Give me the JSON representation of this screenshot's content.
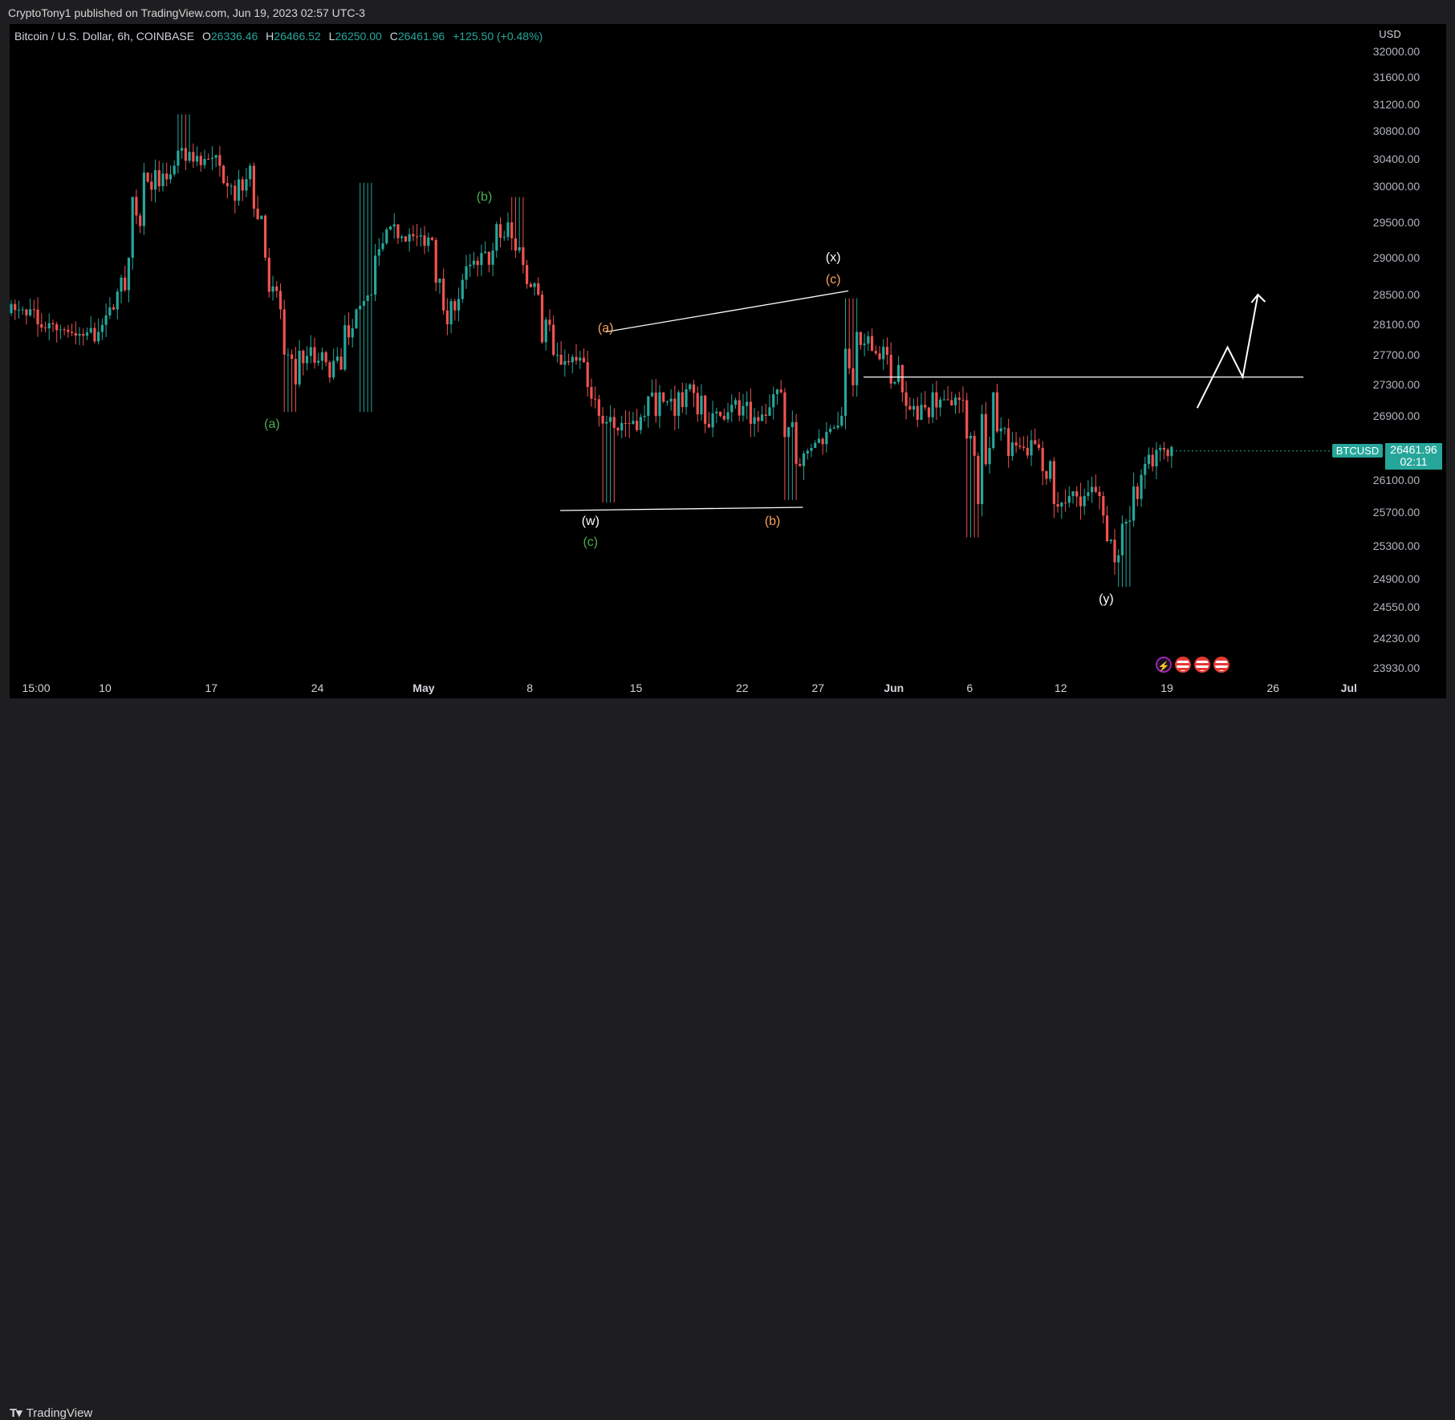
{
  "header": {
    "published_line": "CryptoTony1 published on TradingView.com, Jun 19, 2023 02:57 UTC-3"
  },
  "legend": {
    "symbol": "Bitcoin / U.S. Dollar, 6h, COINBASE",
    "o_label": "O",
    "o": "26336.46",
    "h_label": "H",
    "h": "26466.52",
    "l_label": "L",
    "l": "26250.00",
    "c_label": "C",
    "c": "26461.96",
    "change": "+125.50 (+0.48%)"
  },
  "price_axis": {
    "currency": "USD",
    "ticks": [
      "32000.00",
      "31600.00",
      "31200.00",
      "30800.00",
      "30400.00",
      "30000.00",
      "29500.00",
      "29000.00",
      "28500.00",
      "28100.00",
      "27700.00",
      "27300.00",
      "26900.00",
      "26100.00",
      "25700.00",
      "25300.00",
      "24900.00",
      "24550.00",
      "24230.00",
      "23930.00"
    ],
    "scale": "log"
  },
  "time_axis": {
    "ticks": [
      {
        "label": "15:00",
        "bold": false
      },
      {
        "label": "10",
        "bold": false
      },
      {
        "label": "17",
        "bold": false
      },
      {
        "label": "24",
        "bold": false
      },
      {
        "label": "May",
        "bold": true
      },
      {
        "label": "8",
        "bold": false
      },
      {
        "label": "15",
        "bold": false
      },
      {
        "label": "22",
        "bold": false
      },
      {
        "label": "27",
        "bold": false
      },
      {
        "label": "Jun",
        "bold": true
      },
      {
        "label": "6",
        "bold": false
      },
      {
        "label": "12",
        "bold": false
      },
      {
        "label": "19",
        "bold": false
      },
      {
        "label": "26",
        "bold": false
      },
      {
        "label": "Jul",
        "bold": true
      }
    ]
  },
  "last_price": {
    "ticker": "BTCUSD",
    "price": "26461.96",
    "countdown": "02:11"
  },
  "annotations": {
    "green": [
      {
        "text": "(a)",
        "date": "2023-04-21",
        "price": 26750
      },
      {
        "text": "(b)",
        "date": "2023-05-05",
        "price": 29800
      },
      {
        "text": "(c)",
        "date": "2023-05-12",
        "price": 25300
      }
    ],
    "orange": [
      {
        "text": "(a)",
        "date": "2023-05-13",
        "price": 28000
      },
      {
        "text": "(b)",
        "date": "2023-05-24",
        "price": 25550
      },
      {
        "text": "(c)",
        "date": "2023-05-28",
        "price": 28650
      }
    ],
    "white": [
      {
        "text": "(w)",
        "date": "2023-05-12",
        "price": 25550
      },
      {
        "text": "(x)",
        "date": "2023-05-28",
        "price": 28950
      },
      {
        "text": "(y)",
        "date": "2023-06-15",
        "price": 24600
      }
    ]
  },
  "footer": {
    "brand": "TradingView",
    "logo_glyph": "T▾"
  },
  "colors": {
    "up": "#26a69a",
    "down": "#ef5350",
    "wick_up": "#26a69a",
    "wick_down": "#ef5350",
    "drawing": "#ffffff",
    "green_label": "#4caf50",
    "orange_label": "#f7a35c"
  },
  "chart_data": {
    "type": "candlestick",
    "title": "Bitcoin / U.S. Dollar, 6h, COINBASE",
    "timeframe": "6h",
    "x_range": [
      "2023-04-03",
      "2023-07-01"
    ],
    "ylim": [
      23800,
      32150
    ],
    "series_close": [
      {
        "date": "2023-04-03",
        "close": 28300
      },
      {
        "date": "2023-04-04",
        "close": 28100
      },
      {
        "date": "2023-04-05",
        "close": 28100
      },
      {
        "date": "2023-04-06",
        "close": 28000
      },
      {
        "date": "2023-04-07",
        "close": 27950
      },
      {
        "date": "2023-04-08",
        "close": 28000
      },
      {
        "date": "2023-04-09",
        "close": 28300
      },
      {
        "date": "2023-04-10",
        "close": 29000
      },
      {
        "date": "2023-04-11",
        "close": 30200
      },
      {
        "date": "2023-04-12",
        "close": 30000
      },
      {
        "date": "2023-04-13",
        "close": 30300
      },
      {
        "date": "2023-04-14",
        "close": 30500
      },
      {
        "date": "2023-04-15",
        "close": 30400
      },
      {
        "date": "2023-04-16",
        "close": 30300
      },
      {
        "date": "2023-04-17",
        "close": 29800
      },
      {
        "date": "2023-04-18",
        "close": 30300
      },
      {
        "date": "2023-04-19",
        "close": 29000
      },
      {
        "date": "2023-04-20",
        "close": 28300
      },
      {
        "date": "2023-04-21",
        "close": 27300
      },
      {
        "date": "2023-04-22",
        "close": 27800
      },
      {
        "date": "2023-04-23",
        "close": 27600
      },
      {
        "date": "2023-04-24",
        "close": 27500
      },
      {
        "date": "2023-04-25",
        "close": 28300
      },
      {
        "date": "2023-04-26",
        "close": 28500
      },
      {
        "date": "2023-04-27",
        "close": 29400
      },
      {
        "date": "2023-04-28",
        "close": 29300
      },
      {
        "date": "2023-04-29",
        "close": 29300
      },
      {
        "date": "2023-04-30",
        "close": 29250
      },
      {
        "date": "2023-05-01",
        "close": 28100
      },
      {
        "date": "2023-05-02",
        "close": 28700
      },
      {
        "date": "2023-05-03",
        "close": 28900
      },
      {
        "date": "2023-05-04",
        "close": 29100
      },
      {
        "date": "2023-05-05",
        "close": 29500
      },
      {
        "date": "2023-05-06",
        "close": 28900
      },
      {
        "date": "2023-05-07",
        "close": 28500
      },
      {
        "date": "2023-05-08",
        "close": 27700
      },
      {
        "date": "2023-05-09",
        "close": 27600
      },
      {
        "date": "2023-05-10",
        "close": 27600
      },
      {
        "date": "2023-05-11",
        "close": 26900
      },
      {
        "date": "2023-05-12",
        "close": 26750
      },
      {
        "date": "2023-05-13",
        "close": 26800
      },
      {
        "date": "2023-05-14",
        "close": 26900
      },
      {
        "date": "2023-05-15",
        "close": 27200
      },
      {
        "date": "2023-05-16",
        "close": 26900
      },
      {
        "date": "2023-05-17",
        "close": 27300
      },
      {
        "date": "2023-05-18",
        "close": 26800
      },
      {
        "date": "2023-05-19",
        "close": 26900
      },
      {
        "date": "2023-05-20",
        "close": 27100
      },
      {
        "date": "2023-05-21",
        "close": 26800
      },
      {
        "date": "2023-05-22",
        "close": 26900
      },
      {
        "date": "2023-05-23",
        "close": 27200
      },
      {
        "date": "2023-05-24",
        "close": 26300
      },
      {
        "date": "2023-05-25",
        "close": 26500
      },
      {
        "date": "2023-05-26",
        "close": 26700
      },
      {
        "date": "2023-05-27",
        "close": 26900
      },
      {
        "date": "2023-05-28",
        "close": 28000
      },
      {
        "date": "2023-05-29",
        "close": 27750
      },
      {
        "date": "2023-05-30",
        "close": 27700
      },
      {
        "date": "2023-05-31",
        "close": 27200
      },
      {
        "date": "2023-06-01",
        "close": 26850
      },
      {
        "date": "2023-06-02",
        "close": 27200
      },
      {
        "date": "2023-06-03",
        "close": 27100
      },
      {
        "date": "2023-06-04",
        "close": 27100
      },
      {
        "date": "2023-06-05",
        "close": 25800
      },
      {
        "date": "2023-06-06",
        "close": 27200
      },
      {
        "date": "2023-06-07",
        "close": 26400
      },
      {
        "date": "2023-06-08",
        "close": 26500
      },
      {
        "date": "2023-06-09",
        "close": 26500
      },
      {
        "date": "2023-06-10",
        "close": 25800
      },
      {
        "date": "2023-06-11",
        "close": 25900
      },
      {
        "date": "2023-06-12",
        "close": 25900
      },
      {
        "date": "2023-06-13",
        "close": 25900
      },
      {
        "date": "2023-06-14",
        "close": 25100
      },
      {
        "date": "2023-06-15",
        "close": 25600
      },
      {
        "date": "2023-06-16",
        "close": 26300
      },
      {
        "date": "2023-06-17",
        "close": 26500
      },
      {
        "date": "2023-06-18",
        "close": 26400
      },
      {
        "date": "2023-06-19",
        "close": 26462
      }
    ],
    "drawings": {
      "upper_trendline": [
        [
          "2023-05-13",
          28000
        ],
        [
          "2023-05-29",
          28550
        ]
      ],
      "lower_trendline": [
        [
          "2023-05-10",
          25720
        ],
        [
          "2023-05-26",
          25760
        ]
      ],
      "horizontal_level": {
        "from": "2023-05-30",
        "to": "2023-06-28",
        "price": 27400
      },
      "projection_path": [
        [
          "2023-06-21",
          27000
        ],
        [
          "2023-06-23",
          27800
        ],
        [
          "2023-06-24",
          27400
        ],
        [
          "2023-06-25",
          28500
        ]
      ]
    }
  }
}
